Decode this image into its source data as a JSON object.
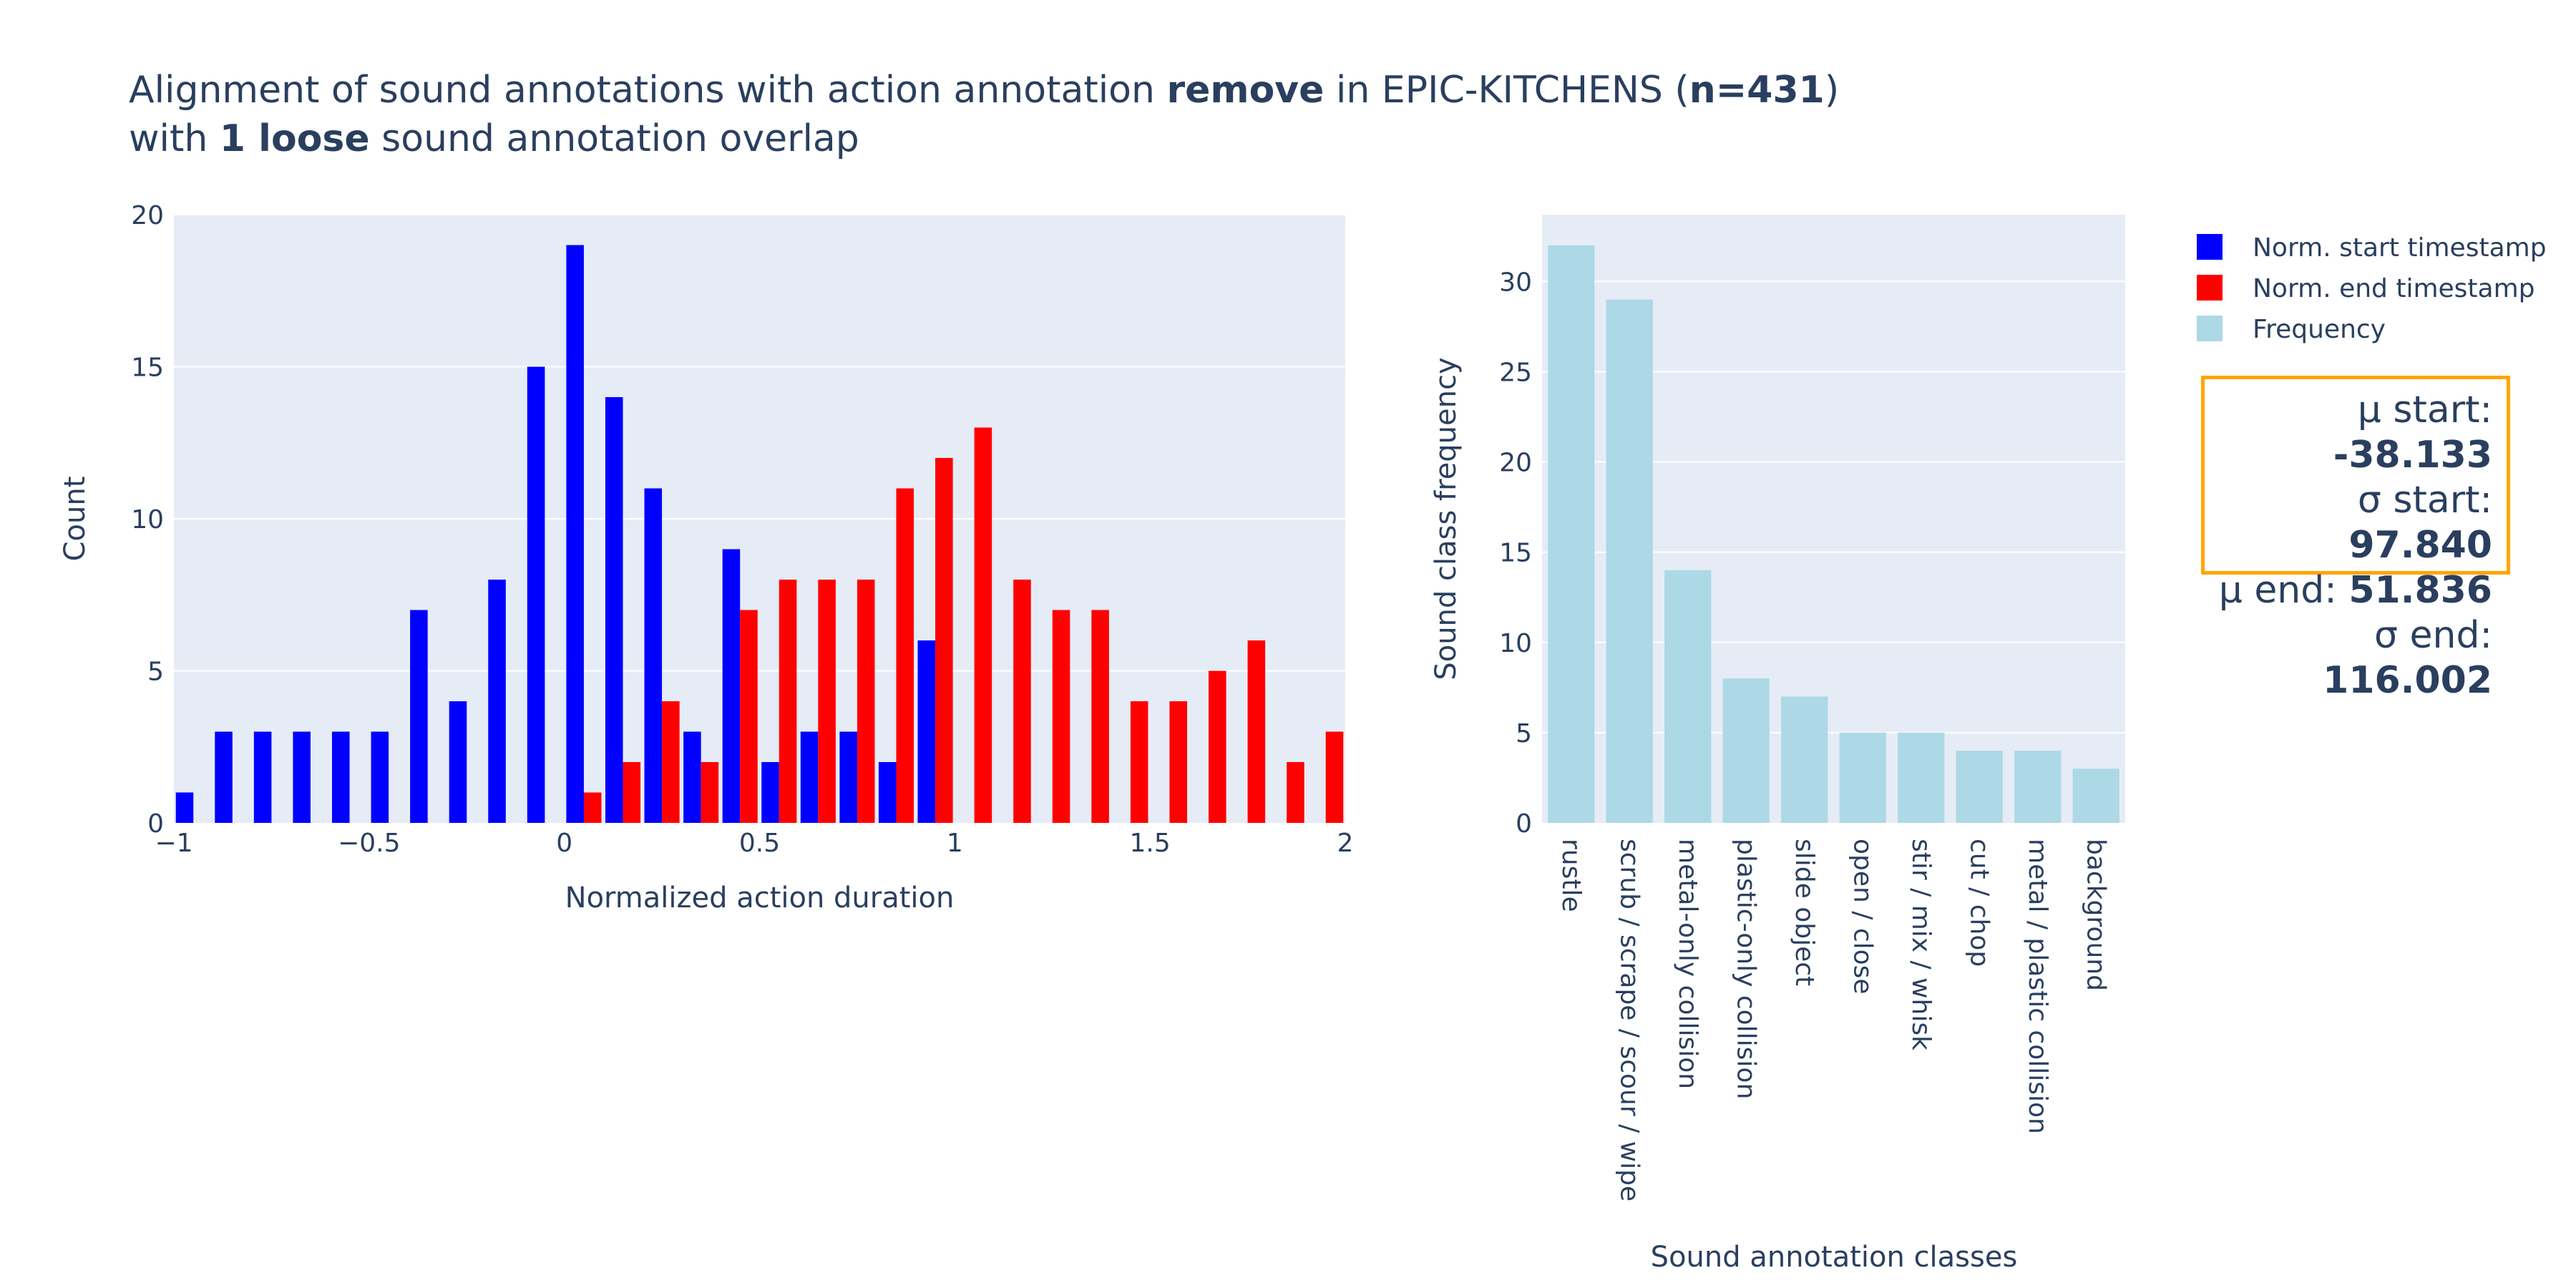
{
  "title": {
    "l1_pre": "Alignment of sound annotations with action annotation ",
    "l1_bold1": "remove",
    "l1_mid": " in EPIC-KITCHENS (",
    "l1_bold2": "n=431",
    "l1_post": ")",
    "l2_pre": "with ",
    "l2_bold": "1 loose",
    "l2_post": " sound annotation overlap"
  },
  "colors": {
    "start": "#0000ff",
    "end": "#ff0000",
    "freq": "#add8e6",
    "plot_bg": "#e5ecf6",
    "stats_border": "#ffa500"
  },
  "legend": {
    "start": "Norm. start timestamp",
    "end": "Norm. end timestamp",
    "freq": "Frequency"
  },
  "stats": {
    "mu_start_label": "μ start: ",
    "mu_start": "-38.133",
    "sigma_start_label": "σ start: ",
    "sigma_start": "97.840",
    "mu_end_label": "μ end: ",
    "mu_end": "51.836",
    "sigma_end_label": "σ end: ",
    "sigma_end": "116.002"
  },
  "chart_data": [
    {
      "type": "bar",
      "xlabel": "Normalized action duration",
      "ylabel": "Count",
      "xlim": [
        -1,
        2
      ],
      "ylim": [
        0,
        20
      ],
      "xticks": [
        -1,
        -0.5,
        0,
        0.5,
        1,
        1.5,
        2
      ],
      "xtick_labels": [
        "−1",
        "−0.5",
        "0",
        "0.5",
        "1",
        "1.5",
        "2"
      ],
      "yticks": [
        0,
        5,
        10,
        15,
        20
      ],
      "bin_start": -1,
      "bin_width": 0.1,
      "series": [
        {
          "name": "Norm. start timestamp",
          "values": [
            1,
            3,
            3,
            3,
            3,
            3,
            7,
            4,
            8,
            15,
            19,
            14,
            11,
            3,
            9,
            2,
            3,
            3,
            2,
            6,
            0,
            0,
            0,
            0,
            0,
            0,
            0,
            0,
            0,
            0
          ]
        },
        {
          "name": "Norm. end timestamp",
          "values": [
            0,
            0,
            0,
            0,
            0,
            0,
            0,
            0,
            0,
            0,
            1,
            2,
            4,
            2,
            7,
            8,
            8,
            8,
            11,
            12,
            13,
            8,
            7,
            7,
            4,
            4,
            5,
            6,
            2,
            3
          ]
        }
      ]
    },
    {
      "type": "bar",
      "xlabel": "Sound annotation classes",
      "ylabel": "Sound class frequency",
      "ylim": [
        0,
        33.7
      ],
      "yticks": [
        0,
        5,
        10,
        15,
        20,
        25,
        30
      ],
      "categories": [
        "rustle",
        "scrub / scrape / scour / wipe",
        "metal-only collision",
        "plastic-only collision",
        "slide object",
        "open / close",
        "stir / mix / whisk",
        "cut / chop",
        "metal / plastic collision",
        "background"
      ],
      "values": [
        32,
        29,
        14,
        8,
        7,
        5,
        5,
        4,
        4,
        3
      ],
      "series_name": "Frequency"
    }
  ]
}
